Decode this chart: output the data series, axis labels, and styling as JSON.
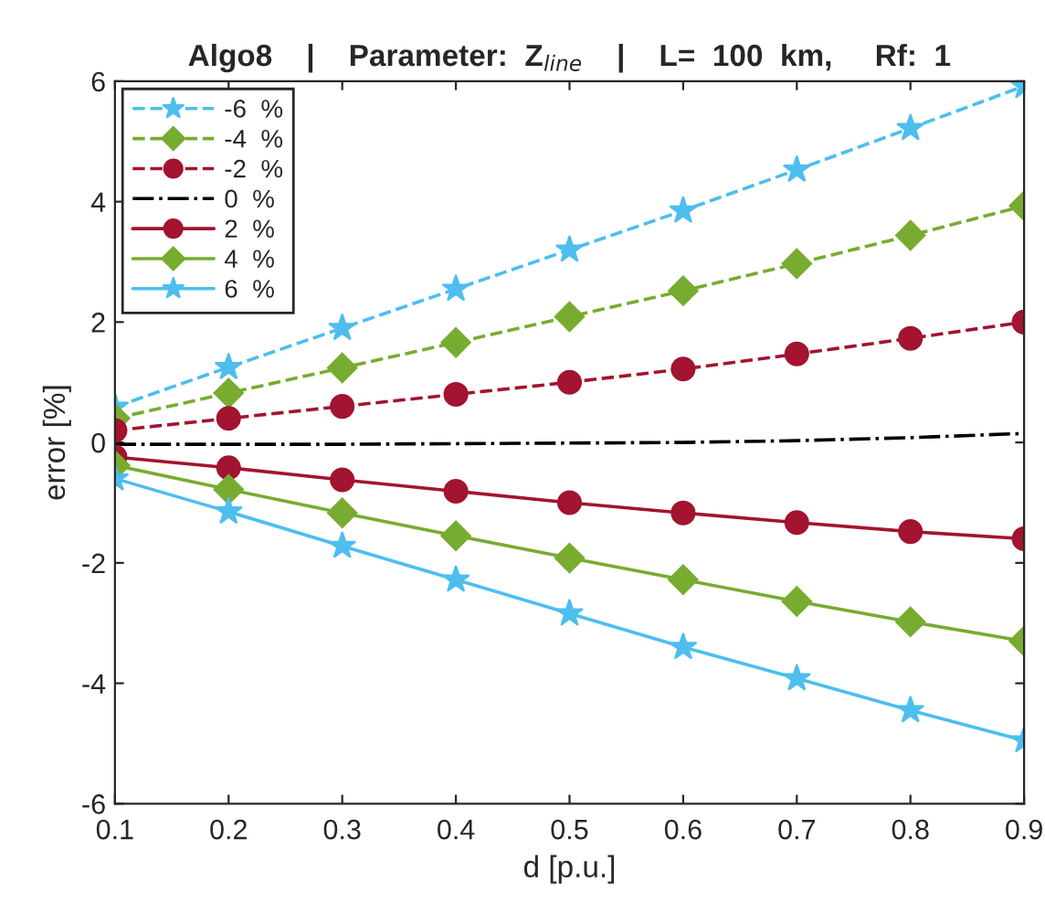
{
  "chart_data": {
    "type": "line",
    "title": "Algo8    |    Parameter:  Z$_{line}$    |    L=  100  km,     Rf:  1",
    "xlabel": "d [p.u.]",
    "ylabel": "error [%]",
    "x": [
      0.1,
      0.2,
      0.3,
      0.4,
      0.5,
      0.6,
      0.7,
      0.8,
      0.9
    ],
    "series": [
      {
        "name": "-6  %",
        "color": "#4dbeee",
        "marker": "star",
        "line_style": "dashed",
        "values": [
          0.59,
          1.25,
          1.9,
          2.55,
          3.2,
          3.85,
          4.53,
          5.22,
          5.92
        ]
      },
      {
        "name": "-4  %",
        "color": "#77ac30",
        "marker": "diamond",
        "line_style": "dashed",
        "values": [
          0.4,
          0.82,
          1.24,
          1.66,
          2.09,
          2.52,
          2.97,
          3.44,
          3.93
        ]
      },
      {
        "name": "-2  %",
        "color": "#a2142f",
        "marker": "circle",
        "line_style": "dashed",
        "values": [
          0.2,
          0.4,
          0.6,
          0.8,
          1.0,
          1.22,
          1.47,
          1.73,
          2.0
        ]
      },
      {
        "name": "0  %",
        "color": "#000000",
        "marker": "none",
        "line_style": "dashdot",
        "values": [
          -0.03,
          -0.03,
          -0.03,
          -0.02,
          -0.01,
          0.0,
          0.03,
          0.08,
          0.15
        ]
      },
      {
        "name": "2  %",
        "color": "#a2142f",
        "marker": "circle",
        "line_style": "solid",
        "values": [
          -0.24,
          -0.42,
          -0.62,
          -0.81,
          -1.0,
          -1.17,
          -1.33,
          -1.48,
          -1.6
        ]
      },
      {
        "name": "4  %",
        "color": "#77ac30",
        "marker": "diamond",
        "line_style": "solid",
        "values": [
          -0.38,
          -0.78,
          -1.17,
          -1.55,
          -1.92,
          -2.28,
          -2.64,
          -2.98,
          -3.3
        ]
      },
      {
        "name": "6  %",
        "color": "#4dbeee",
        "marker": "star",
        "line_style": "solid",
        "values": [
          -0.6,
          -1.15,
          -1.72,
          -2.28,
          -2.84,
          -3.4,
          -3.92,
          -4.45,
          -4.95
        ]
      }
    ],
    "xlim": [
      0.1,
      0.9
    ],
    "xticks": [
      0.1,
      0.2,
      0.3,
      0.4,
      0.5,
      0.6,
      0.7,
      0.8,
      0.9
    ],
    "ylim": [
      -6,
      6
    ],
    "yticks": [
      -6,
      -4,
      -2,
      0,
      2,
      4,
      6
    ],
    "grid": false,
    "legend": "top left"
  }
}
